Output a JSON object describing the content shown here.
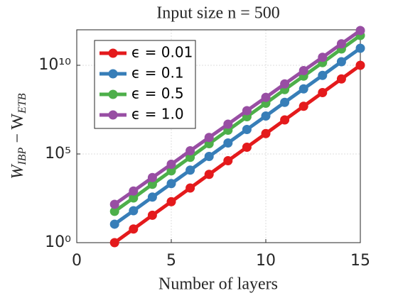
{
  "chart_data": {
    "type": "line",
    "title": "Input size n = 500",
    "xlabel": "Number of layers",
    "ylabel": "W_IBP − W_ETB",
    "x": [
      2,
      3,
      4,
      5,
      6,
      7,
      8,
      9,
      10,
      11,
      12,
      13,
      14,
      15
    ],
    "series": [
      {
        "name": "ϵ = 0.01",
        "color": "#e41a1c",
        "values": [
          1,
          5.9,
          35,
          204,
          1200,
          7080,
          41700,
          240000,
          1410000,
          8320000,
          49000000,
          288000000,
          1700000000,
          10000000000
        ]
      },
      {
        "name": "ϵ = 0.1",
        "color": "#377eb8",
        "values": [
          11,
          63,
          372,
          2140,
          12300,
          72400,
          417000,
          2400000,
          13800000,
          81300000,
          468000000,
          2690000000,
          15800000000,
          91200000000
        ]
      },
      {
        "name": "ϵ = 0.5",
        "color": "#4daf4a",
        "values": [
          58,
          331,
          1950,
          11200,
          64600,
          380000,
          2190000,
          12600000,
          72400000,
          427000000,
          2450000000,
          14100000000,
          83200000000,
          479000000000
        ]
      },
      {
        "name": "ϵ = 1.0",
        "color": "#984ea3",
        "values": [
          145,
          813,
          4680,
          26300,
          151000,
          851000,
          4790000,
          27500000,
          155000000,
          891000000,
          5010000000,
          28200000000,
          162000000000,
          912000000000
        ]
      }
    ],
    "xlim": [
      0,
      15
    ],
    "xticks": [
      0,
      5,
      10,
      15
    ],
    "ylim": [
      1,
      1000000000000
    ],
    "yticks": [
      {
        "value": 1,
        "label": "10⁰"
      },
      {
        "value": 100000,
        "label": "10⁵"
      },
      {
        "value": 10000000000,
        "label": "10¹⁰"
      }
    ],
    "log_y": true,
    "grid": true,
    "legend": "upper left"
  }
}
